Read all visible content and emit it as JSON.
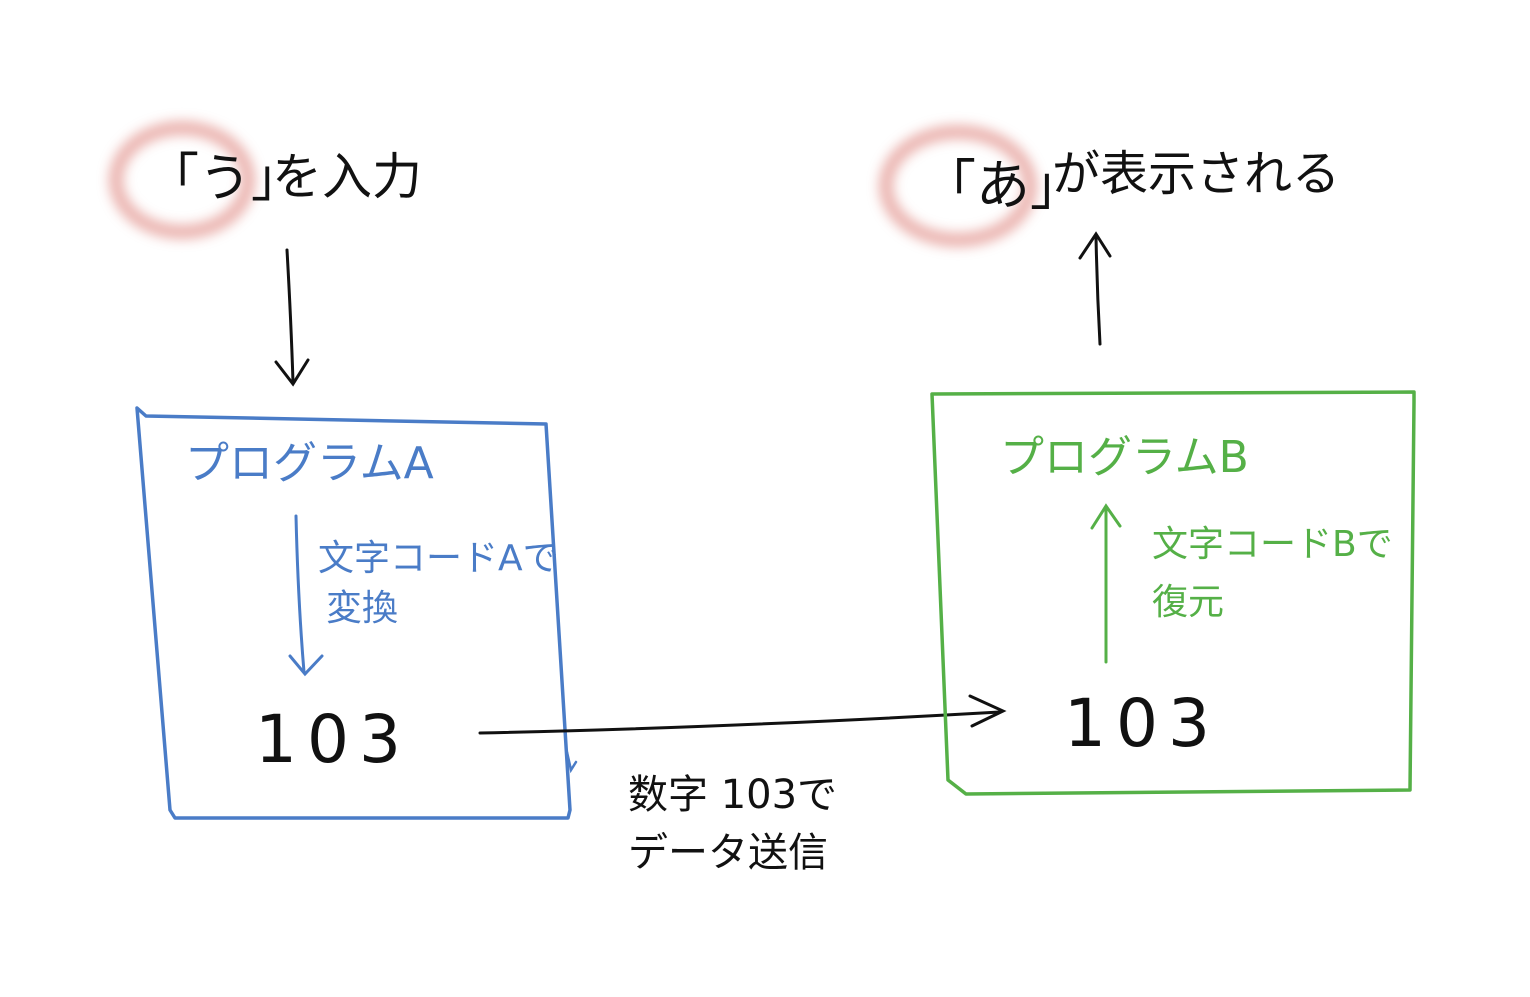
{
  "colors": {
    "ink": "#111111",
    "program_a": "#4a7cc7",
    "program_b": "#55b047",
    "highlight": "#d9726a"
  },
  "input_label": {
    "char": "「う」",
    "suffix": "を入力"
  },
  "output_label": {
    "char": "「あ」",
    "suffix": "が表示される"
  },
  "program_a": {
    "title": "プログラムA",
    "step_line1": "文字コードAで",
    "step_line2": "変換",
    "value": "103"
  },
  "program_b": {
    "title": "プログラムB",
    "step_line1": "文字コードBで",
    "step_line2": "復元",
    "value": "103"
  },
  "transfer": {
    "line1": "数字 103で",
    "line2": "データ送信"
  }
}
